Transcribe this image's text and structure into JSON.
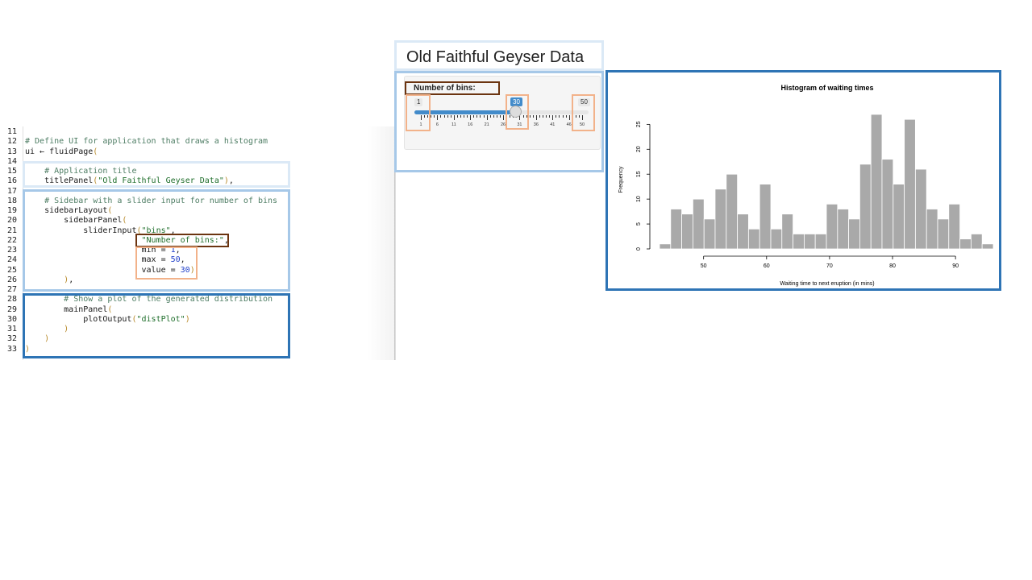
{
  "code": {
    "lines": [
      {
        "n": "11",
        "t": ""
      },
      {
        "n": "12",
        "t": "# Define UI for application that draws a histogram"
      },
      {
        "n": "13",
        "t": "ui <- fluidPage("
      },
      {
        "n": "14",
        "t": ""
      },
      {
        "n": "15",
        "t": "    # Application title"
      },
      {
        "n": "16",
        "t": "    titlePanel(\"Old Faithful Geyser Data\"),"
      },
      {
        "n": "17",
        "t": ""
      },
      {
        "n": "18",
        "t": "    # Sidebar with a slider input for number of bins"
      },
      {
        "n": "19",
        "t": "    sidebarLayout("
      },
      {
        "n": "20",
        "t": "        sidebarPanel("
      },
      {
        "n": "21",
        "t": "            sliderInput(\"bins\","
      },
      {
        "n": "22",
        "t": "                        \"Number of bins:\","
      },
      {
        "n": "23",
        "t": "                        min = 1,"
      },
      {
        "n": "24",
        "t": "                        max = 50,"
      },
      {
        "n": "25",
        "t": "                        value = 30)"
      },
      {
        "n": "26",
        "t": "        ),"
      },
      {
        "n": "27",
        "t": ""
      },
      {
        "n": "28",
        "t": "        # Show a plot of the generated distribution"
      },
      {
        "n": "29",
        "t": "        mainPanel("
      },
      {
        "n": "30",
        "t": "            plotOutput(\"distPlot\")"
      },
      {
        "n": "31",
        "t": "        )"
      },
      {
        "n": "32",
        "t": "    )"
      },
      {
        "n": "33",
        "t": ")"
      }
    ]
  },
  "app": {
    "title": "Old Faithful Geyser Data",
    "slider": {
      "label": "Number of bins:",
      "min_label": "1",
      "max_label": "50",
      "value_label": "30",
      "min": 1,
      "max": 50,
      "value": 30,
      "ticks": [
        "1",
        "6",
        "11",
        "16",
        "21",
        "26",
        "31",
        "36",
        "41",
        "46",
        "50"
      ]
    }
  },
  "colors": {
    "title_box": "#dbe9f6",
    "sidebar_box": "#a6c8e8",
    "main_box": "#2e74b5",
    "label_box": "#6b3410",
    "param_box": "#f2b28a",
    "slider_accent": "#428bca",
    "bar_fill": "#a9a9a9"
  },
  "chart_data": {
    "type": "bar",
    "title": "Histogram of waiting times",
    "xlabel": "Waiting time to next eruption (in mins)",
    "ylabel": "Frequency",
    "bin_edges": [
      43,
      44.77,
      46.53,
      48.3,
      50.07,
      51.83,
      53.6,
      55.37,
      57.13,
      58.9,
      60.67,
      62.43,
      64.2,
      65.97,
      67.73,
      69.5,
      71.27,
      73.03,
      74.8,
      76.57,
      78.33,
      80.1,
      81.87,
      83.63,
      85.4,
      87.17,
      88.93,
      90.7,
      92.47,
      94.23,
      96
    ],
    "values": [
      1,
      8,
      7,
      10,
      6,
      12,
      15,
      7,
      4,
      13,
      4,
      7,
      3,
      3,
      3,
      9,
      8,
      6,
      17,
      27,
      18,
      13,
      26,
      16,
      8,
      6,
      9,
      2,
      3,
      1
    ],
    "xticks": [
      "50",
      "60",
      "70",
      "80",
      "90"
    ],
    "yticks": [
      "0",
      "5",
      "10",
      "15",
      "20",
      "25"
    ],
    "xlim": [
      43,
      96
    ],
    "ylim": [
      0,
      27
    ]
  }
}
